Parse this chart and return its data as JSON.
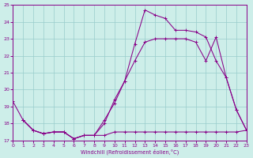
{
  "xlabel": "Windchill (Refroidissement éolien,°C)",
  "xlim": [
    0,
    23
  ],
  "ylim": [
    17,
    25
  ],
  "yticks": [
    17,
    18,
    19,
    20,
    21,
    22,
    23,
    24,
    25
  ],
  "xticks": [
    0,
    1,
    2,
    3,
    4,
    5,
    6,
    7,
    8,
    9,
    10,
    11,
    12,
    13,
    14,
    15,
    16,
    17,
    18,
    19,
    20,
    21,
    22,
    23
  ],
  "bg_color": "#cdeee9",
  "line_color": "#880088",
  "grid_color": "#99cccc",
  "series1_x": [
    0,
    1,
    2,
    3,
    4,
    5,
    6,
    7,
    8,
    9,
    10,
    11,
    12,
    13,
    14,
    15,
    16,
    17,
    18,
    19,
    20,
    21,
    22,
    23
  ],
  "series1_y": [
    19.3,
    18.2,
    17.6,
    17.4,
    17.5,
    17.5,
    17.1,
    17.3,
    17.3,
    18.0,
    19.4,
    20.5,
    22.7,
    24.7,
    24.4,
    24.2,
    23.5,
    23.5,
    23.4,
    23.1,
    21.7,
    20.7,
    18.8,
    17.6
  ],
  "series2_x": [
    1,
    2,
    3,
    4,
    5,
    6,
    7,
    8,
    9,
    10,
    11,
    12,
    13,
    14,
    15,
    16,
    17,
    18,
    19,
    20,
    21,
    22,
    23
  ],
  "series2_y": [
    18.2,
    17.6,
    17.4,
    17.5,
    17.5,
    17.1,
    17.3,
    17.3,
    18.2,
    19.2,
    20.5,
    21.7,
    22.8,
    23.0,
    23.0,
    23.0,
    23.0,
    22.8,
    21.7,
    23.1,
    20.7,
    18.8,
    17.6
  ],
  "series3_x": [
    1,
    2,
    3,
    4,
    5,
    6,
    7,
    8,
    9,
    10,
    11,
    12,
    13,
    14,
    15,
    16,
    17,
    18,
    19,
    20,
    21,
    22,
    23
  ],
  "series3_y": [
    18.2,
    17.6,
    17.4,
    17.5,
    17.5,
    17.1,
    17.3,
    17.3,
    17.3,
    17.5,
    17.5,
    17.5,
    17.5,
    17.5,
    17.5,
    17.5,
    17.5,
    17.5,
    17.5,
    17.5,
    17.5,
    17.5,
    17.6
  ]
}
